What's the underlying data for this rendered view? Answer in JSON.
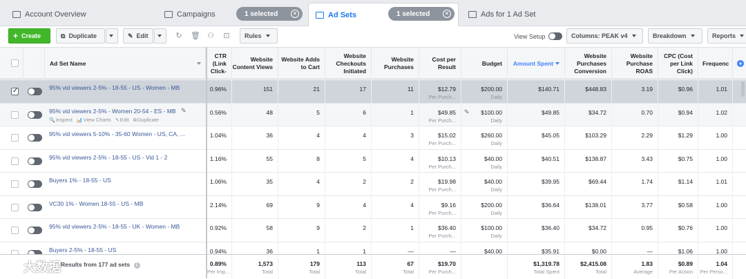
{
  "tabs": {
    "account_overview": "Account Overview",
    "campaigns": "Campaigns",
    "campaigns_selected": "1 selected",
    "ad_sets": "Ad Sets",
    "ad_sets_selected": "1 selected",
    "ads_for": "Ads for 1 Ad Set"
  },
  "toolbar": {
    "create": "Create",
    "duplicate": "Duplicate",
    "edit": "Edit",
    "rules": "Rules",
    "view_setup": "View Setup",
    "columns": "Columns: PEAK v4",
    "breakdown": "Breakdown",
    "reports": "Reports"
  },
  "headers": {
    "name": "Ad Set Name",
    "ctr": "CTR (Link Click-",
    "content_views": "Website Content Views",
    "adds_to_cart": "Website Adds to Cart",
    "checkouts": "Website Checkouts Initiated",
    "purchases": "Website Purchases",
    "cost_per_result": "Cost per Result",
    "budget": "Budget",
    "amount_spent": "Amount Spent",
    "purchases_conversion": "Website Purchases Conversion",
    "roas": "Website Purchase ROAS",
    "cpc": "CPC (Cost per Link Click)",
    "frequency": "Frequenc"
  },
  "row_actions": {
    "inspect": "Inspect",
    "view_charts": "View Charts",
    "edit": "Edit",
    "duplicate": "Duplicate"
  },
  "rows": [
    {
      "name": "95% vid viewers 2-5% - 18-55 - US - Women - MB",
      "ctr": "0.96%",
      "cv": "151",
      "atc": "21",
      "ci": "17",
      "p": "11",
      "cpr": "$12.79",
      "cpr_sub": "Per Purch...",
      "budget": "$200.00",
      "budget_sub": "Daily",
      "spent": "$140.71",
      "conv": "$448.83",
      "roas": "3.19",
      "cpc": "$0.96",
      "freq": "1.01"
    },
    {
      "name": "95% vid viewers 2-5% - Women 20-54 - ES - MB",
      "ctr": "0.56%",
      "cv": "48",
      "atc": "5",
      "ci": "6",
      "p": "1",
      "cpr": "$49.85",
      "cpr_sub": "Per Purch...",
      "budget": "$100.00",
      "budget_sub": "Daily",
      "spent": "$49.85",
      "conv": "$34.72",
      "roas": "0.70",
      "cpc": "$0.94",
      "freq": "1.02"
    },
    {
      "name": "95% vid viewers 5-10% - 35-60 Women - US, CA, ...",
      "ctr": "1.04%",
      "cv": "36",
      "atc": "4",
      "ci": "4",
      "p": "3",
      "cpr": "$15.02",
      "cpr_sub": "Per Purch...",
      "budget": "$260.00",
      "budget_sub": "Daily",
      "spent": "$45.05",
      "conv": "$103.29",
      "roas": "2.29",
      "cpc": "$1.29",
      "freq": "1.00"
    },
    {
      "name": "95% vid viewers 2-5% - 18-55 - US - Vid 1 - 2",
      "ctr": "1.16%",
      "cv": "55",
      "atc": "8",
      "ci": "5",
      "p": "4",
      "cpr": "$10.13",
      "cpr_sub": "Per Purch...",
      "budget": "$40.00",
      "budget_sub": "Daily",
      "spent": "$40.51",
      "conv": "$138.87",
      "roas": "3.43",
      "cpc": "$0.75",
      "freq": "1.00"
    },
    {
      "name": "Buyers 1% - 18-55 - US",
      "ctr": "1.06%",
      "cv": "35",
      "atc": "4",
      "ci": "2",
      "p": "2",
      "cpr": "$19.98",
      "cpr_sub": "Per Purch...",
      "budget": "$40.00",
      "budget_sub": "Daily",
      "spent": "$39.95",
      "conv": "$69.44",
      "roas": "1.74",
      "cpc": "$1.14",
      "freq": "1.01"
    },
    {
      "name": "VC30 1% - Women 18-55 - US - MB",
      "ctr": "2.14%",
      "cv": "69",
      "atc": "9",
      "ci": "4",
      "p": "4",
      "cpr": "$9.16",
      "cpr_sub": "Per Purch...",
      "budget": "$200.00",
      "budget_sub": "Daily",
      "spent": "$36.64",
      "conv": "$138.01",
      "roas": "3.77",
      "cpc": "$0.58",
      "freq": "1.00"
    },
    {
      "name": "95% vid viewers 2-5% - 18-55 - UK - Women - MB",
      "ctr": "0.92%",
      "cv": "58",
      "atc": "9",
      "ci": "2",
      "p": "1",
      "cpr": "$36.40",
      "cpr_sub": "Per Purch...",
      "budget": "$100.00",
      "budget_sub": "Daily",
      "spent": "$36.40",
      "conv": "$34.72",
      "roas": "0.95",
      "cpc": "$0.76",
      "freq": "1.00"
    },
    {
      "name": "Buyers 2-5% - 18-55 - US",
      "ctr": "0.94%",
      "cv": "36",
      "atc": "1",
      "ci": "1",
      "p": "—",
      "cpr": "—",
      "cpr_sub": "",
      "budget": "$40.00",
      "budget_sub": "",
      "spent": "$35.91",
      "conv": "$0.00",
      "roas": "—",
      "cpc": "$1.06",
      "freq": "1.00"
    }
  ],
  "footer": {
    "label": "Results from 177 ad sets",
    "ctr": "0.89%",
    "ctr_sub": "Per Imp...",
    "cv": "1,573",
    "cv_sub": "Total",
    "atc": "179",
    "atc_sub": "Total",
    "ci": "113",
    "ci_sub": "Total",
    "p": "67",
    "p_sub": "Total",
    "cpr": "$19.70",
    "cpr_sub": "Per Purch...",
    "spent": "$1,319.78",
    "spent_sub": "Total Spent",
    "conv": "$2,415.08",
    "conv_sub": "Total",
    "roas": "1.83",
    "roas_sub": "Average",
    "cpc": "$0.89",
    "cpc_sub": "Per Action",
    "freq": "1.04",
    "freq_sub": "Per Perso..."
  },
  "watermark": "大数据"
}
